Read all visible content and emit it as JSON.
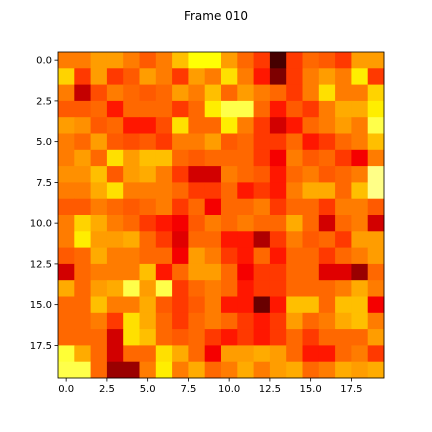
{
  "chart_data": {
    "type": "heatmap",
    "title": "Frame 010",
    "colormap": "hot",
    "vmin": 0,
    "vmax": 1,
    "xlim": [
      -0.5,
      19.5
    ],
    "ylim": [
      19.5,
      -0.5
    ],
    "xticks": [
      0.0,
      2.5,
      5.0,
      7.5,
      10.0,
      12.5,
      15.0,
      17.5
    ],
    "yticks": [
      0.0,
      2.5,
      5.0,
      7.5,
      10.0,
      12.5,
      15.0,
      17.5
    ],
    "xtick_labels": [
      "0.0",
      "2.5",
      "5.0",
      "7.5",
      "10.0",
      "12.5",
      "15.0",
      "17.5"
    ],
    "ytick_labels": [
      "0.0",
      "2.5",
      "5.0",
      "7.5",
      "10.0",
      "12.5",
      "15.0",
      "17.5"
    ],
    "grid": false,
    "z": [
      [
        0.55,
        0.55,
        0.6,
        0.6,
        0.55,
        0.5,
        0.55,
        0.65,
        0.75,
        0.75,
        0.6,
        0.52,
        0.45,
        0.1,
        0.45,
        0.52,
        0.5,
        0.45,
        0.6,
        0.6
      ],
      [
        0.68,
        0.45,
        0.6,
        0.45,
        0.5,
        0.6,
        0.55,
        0.45,
        0.6,
        0.55,
        0.7,
        0.55,
        0.4,
        0.18,
        0.45,
        0.55,
        0.6,
        0.55,
        0.72,
        0.45
      ],
      [
        0.55,
        0.28,
        0.48,
        0.55,
        0.52,
        0.5,
        0.52,
        0.6,
        0.55,
        0.65,
        0.52,
        0.6,
        0.55,
        0.52,
        0.45,
        0.55,
        0.7,
        0.55,
        0.55,
        0.68
      ],
      [
        0.5,
        0.5,
        0.52,
        0.4,
        0.52,
        0.52,
        0.52,
        0.45,
        0.52,
        0.72,
        0.82,
        0.82,
        0.52,
        0.4,
        0.5,
        0.45,
        0.55,
        0.62,
        0.62,
        0.72
      ],
      [
        0.6,
        0.58,
        0.5,
        0.52,
        0.4,
        0.4,
        0.48,
        0.7,
        0.52,
        0.52,
        0.72,
        0.55,
        0.45,
        0.3,
        0.4,
        0.52,
        0.55,
        0.6,
        0.55,
        0.82
      ],
      [
        0.55,
        0.52,
        0.6,
        0.5,
        0.48,
        0.5,
        0.45,
        0.55,
        0.55,
        0.6,
        0.5,
        0.52,
        0.45,
        0.45,
        0.52,
        0.4,
        0.45,
        0.52,
        0.55,
        0.65
      ],
      [
        0.55,
        0.6,
        0.52,
        0.7,
        0.6,
        0.65,
        0.65,
        0.52,
        0.5,
        0.52,
        0.52,
        0.52,
        0.45,
        0.35,
        0.55,
        0.5,
        0.52,
        0.45,
        0.35,
        0.55
      ],
      [
        0.58,
        0.58,
        0.65,
        0.5,
        0.6,
        0.62,
        0.55,
        0.45,
        0.3,
        0.3,
        0.55,
        0.52,
        0.5,
        0.4,
        0.52,
        0.55,
        0.5,
        0.52,
        0.55,
        0.88
      ],
      [
        0.55,
        0.55,
        0.62,
        0.7,
        0.55,
        0.55,
        0.55,
        0.52,
        0.45,
        0.45,
        0.52,
        0.4,
        0.45,
        0.4,
        0.55,
        0.62,
        0.62,
        0.52,
        0.65,
        0.88
      ],
      [
        0.5,
        0.5,
        0.55,
        0.52,
        0.5,
        0.52,
        0.55,
        0.45,
        0.52,
        0.35,
        0.52,
        0.52,
        0.55,
        0.45,
        0.52,
        0.52,
        0.45,
        0.55,
        0.55,
        0.5
      ],
      [
        0.55,
        0.68,
        0.62,
        0.55,
        0.52,
        0.45,
        0.4,
        0.35,
        0.5,
        0.55,
        0.52,
        0.55,
        0.52,
        0.52,
        0.62,
        0.52,
        0.3,
        0.52,
        0.55,
        0.3
      ],
      [
        0.55,
        0.72,
        0.6,
        0.6,
        0.62,
        0.52,
        0.45,
        0.32,
        0.52,
        0.52,
        0.4,
        0.4,
        0.25,
        0.45,
        0.55,
        0.5,
        0.52,
        0.45,
        0.6,
        0.6
      ],
      [
        0.5,
        0.52,
        0.62,
        0.55,
        0.55,
        0.52,
        0.52,
        0.35,
        0.6,
        0.55,
        0.45,
        0.4,
        0.52,
        0.4,
        0.52,
        0.52,
        0.45,
        0.52,
        0.55,
        0.6
      ],
      [
        0.3,
        0.52,
        0.55,
        0.55,
        0.55,
        0.65,
        0.4,
        0.52,
        0.6,
        0.6,
        0.52,
        0.35,
        0.45,
        0.45,
        0.52,
        0.52,
        0.32,
        0.32,
        0.22,
        0.52
      ],
      [
        0.62,
        0.52,
        0.6,
        0.62,
        0.82,
        0.6,
        0.82,
        0.45,
        0.52,
        0.55,
        0.52,
        0.4,
        0.45,
        0.45,
        0.52,
        0.52,
        0.52,
        0.55,
        0.62,
        0.55
      ],
      [
        0.52,
        0.52,
        0.65,
        0.55,
        0.55,
        0.62,
        0.5,
        0.45,
        0.5,
        0.55,
        0.4,
        0.4,
        0.15,
        0.4,
        0.65,
        0.65,
        0.52,
        0.65,
        0.65,
        0.35
      ],
      [
        0.52,
        0.52,
        0.55,
        0.45,
        0.7,
        0.62,
        0.52,
        0.45,
        0.52,
        0.55,
        0.52,
        0.45,
        0.4,
        0.45,
        0.6,
        0.52,
        0.55,
        0.62,
        0.65,
        0.55
      ],
      [
        0.52,
        0.52,
        0.52,
        0.3,
        0.7,
        0.65,
        0.52,
        0.5,
        0.52,
        0.45,
        0.4,
        0.45,
        0.4,
        0.45,
        0.52,
        0.45,
        0.52,
        0.52,
        0.52,
        0.6
      ],
      [
        0.8,
        0.62,
        0.52,
        0.3,
        0.52,
        0.52,
        0.7,
        0.62,
        0.52,
        0.35,
        0.6,
        0.6,
        0.62,
        0.6,
        0.52,
        0.4,
        0.4,
        0.52,
        0.55,
        0.45
      ],
      [
        0.82,
        0.82,
        0.52,
        0.22,
        0.22,
        0.55,
        0.72,
        0.55,
        0.62,
        0.52,
        0.55,
        0.62,
        0.55,
        0.6,
        0.62,
        0.52,
        0.55,
        0.62,
        0.6,
        0.62
      ]
    ]
  }
}
